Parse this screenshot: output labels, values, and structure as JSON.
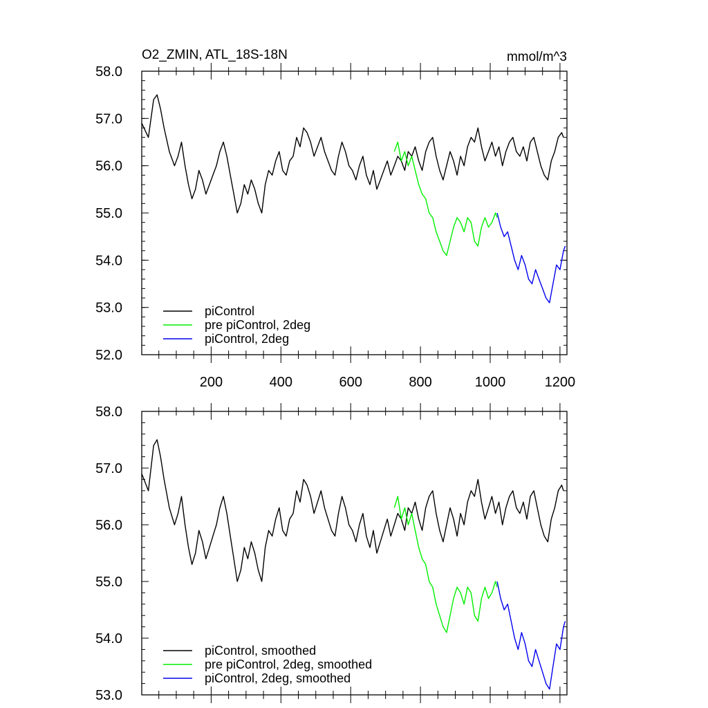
{
  "chart_data": [
    {
      "type": "line",
      "title_left": "O2_ZMIN, ATL_18S-18N",
      "title_right": "mmol/m^3",
      "xlim": [
        1,
        1220
      ],
      "ylim": [
        52.0,
        58.0
      ],
      "xticks": [
        200,
        400,
        600,
        800,
        1000,
        1200
      ],
      "xtick_labels": [
        "200",
        "400",
        "600",
        "800",
        "1000",
        "1200"
      ],
      "yticks": [
        52.0,
        53.0,
        54.0,
        55.0,
        56.0,
        57.0,
        58.0
      ],
      "ytick_labels": [
        "52.0",
        "53.0",
        "54.0",
        "55.0",
        "56.0",
        "57.0",
        "58.0"
      ],
      "legend_position": "bottom-left",
      "series": [
        {
          "name": "piControl",
          "color": "#000000",
          "x": [
            1,
            20,
            35,
            45,
            55,
            65,
            80,
            95,
            105,
            115,
            125,
            135,
            145,
            155,
            165,
            175,
            185,
            195,
            205,
            215,
            225,
            235,
            245,
            255,
            265,
            275,
            285,
            295,
            305,
            315,
            325,
            335,
            345,
            355,
            365,
            375,
            385,
            395,
            405,
            415,
            425,
            435,
            445,
            455,
            465,
            475,
            485,
            495,
            505,
            515,
            525,
            535,
            545,
            555,
            565,
            575,
            585,
            595,
            605,
            615,
            625,
            635,
            645,
            655,
            665,
            675,
            685,
            695,
            705,
            715,
            725,
            735,
            745,
            755,
            765,
            775,
            785,
            795,
            805,
            815,
            825,
            835,
            845,
            855,
            865,
            875,
            885,
            895,
            905,
            915,
            925,
            935,
            945,
            955,
            965,
            975,
            985,
            995,
            1005,
            1015,
            1025,
            1035,
            1045,
            1055,
            1065,
            1075,
            1085,
            1095,
            1105,
            1115,
            1125,
            1135,
            1145,
            1155,
            1165,
            1175,
            1185,
            1195,
            1205,
            1210
          ],
          "y": [
            56.9,
            56.6,
            57.4,
            57.5,
            57.2,
            56.8,
            56.3,
            56.0,
            56.2,
            56.5,
            56.0,
            55.6,
            55.3,
            55.5,
            55.9,
            55.7,
            55.4,
            55.6,
            55.8,
            56.0,
            56.3,
            56.5,
            56.2,
            55.8,
            55.4,
            55.0,
            55.2,
            55.6,
            55.4,
            55.7,
            55.5,
            55.2,
            55.0,
            55.6,
            55.9,
            55.8,
            56.1,
            56.3,
            55.9,
            55.8,
            56.1,
            56.2,
            56.6,
            56.4,
            56.8,
            56.7,
            56.5,
            56.2,
            56.4,
            56.6,
            56.3,
            56.1,
            55.9,
            55.8,
            56.2,
            56.5,
            56.3,
            56.0,
            55.9,
            55.7,
            56.0,
            56.2,
            55.8,
            55.6,
            55.9,
            55.5,
            55.7,
            55.9,
            56.1,
            55.8,
            56.0,
            56.2,
            56.1,
            55.9,
            56.3,
            56.2,
            56.4,
            56.1,
            55.9,
            56.3,
            56.5,
            56.6,
            56.2,
            55.9,
            55.7,
            56.0,
            56.3,
            56.1,
            55.8,
            56.2,
            56.0,
            56.4,
            56.6,
            56.5,
            56.8,
            56.4,
            56.1,
            56.3,
            56.5,
            56.2,
            56.4,
            56.0,
            56.3,
            56.5,
            56.6,
            56.3,
            56.2,
            56.4,
            56.1,
            56.5,
            56.6,
            56.3,
            56.0,
            55.8,
            55.7,
            56.1,
            56.3,
            56.6,
            56.7,
            56.6
          ]
        },
        {
          "name": "pre piControl, 2deg",
          "color": "#00ee00",
          "x": [
            725,
            735,
            745,
            755,
            765,
            775,
            785,
            795,
            805,
            815,
            825,
            835,
            845,
            855,
            865,
            875,
            885,
            895,
            905,
            915,
            925,
            935,
            945,
            955,
            965,
            975,
            985,
            995,
            1005,
            1015,
            1020
          ],
          "y": [
            56.3,
            56.5,
            56.1,
            56.3,
            56.0,
            56.2,
            55.9,
            55.6,
            55.4,
            55.3,
            55.0,
            54.9,
            54.6,
            54.4,
            54.2,
            54.1,
            54.4,
            54.7,
            54.9,
            54.8,
            54.6,
            54.9,
            54.8,
            54.4,
            54.3,
            54.7,
            54.9,
            54.7,
            54.8,
            55.0,
            54.9
          ]
        },
        {
          "name": "piControl, 2deg",
          "color": "#0000ee",
          "x": [
            1020,
            1030,
            1040,
            1050,
            1060,
            1070,
            1080,
            1090,
            1100,
            1110,
            1120,
            1130,
            1140,
            1150,
            1160,
            1170,
            1180,
            1190,
            1200,
            1210,
            1215
          ],
          "y": [
            55.0,
            54.7,
            54.5,
            54.6,
            54.3,
            54.0,
            53.8,
            54.1,
            53.9,
            53.6,
            53.5,
            53.8,
            53.6,
            53.4,
            53.2,
            53.1,
            53.5,
            53.9,
            53.8,
            54.2,
            54.3
          ]
        }
      ]
    },
    {
      "type": "line",
      "xlim": [
        1,
        1220
      ],
      "ylim": [
        53.0,
        58.0
      ],
      "xticks": [
        200,
        400,
        600,
        800,
        1000,
        1200
      ],
      "yticks": [
        53.0,
        54.0,
        55.0,
        56.0,
        57.0,
        58.0
      ],
      "ytick_labels": [
        "53.0",
        "54.0",
        "55.0",
        "56.0",
        "57.0",
        "58.0"
      ],
      "legend_position": "bottom-left",
      "series": [
        {
          "name": "piControl, smoothed",
          "color": "#000000",
          "x": [
            1,
            20,
            35,
            45,
            55,
            65,
            80,
            95,
            105,
            115,
            125,
            135,
            145,
            155,
            165,
            175,
            185,
            195,
            205,
            215,
            225,
            235,
            245,
            255,
            265,
            275,
            285,
            295,
            305,
            315,
            325,
            335,
            345,
            355,
            365,
            375,
            385,
            395,
            405,
            415,
            425,
            435,
            445,
            455,
            465,
            475,
            485,
            495,
            505,
            515,
            525,
            535,
            545,
            555,
            565,
            575,
            585,
            595,
            605,
            615,
            625,
            635,
            645,
            655,
            665,
            675,
            685,
            695,
            705,
            715,
            725,
            735,
            745,
            755,
            765,
            775,
            785,
            795,
            805,
            815,
            825,
            835,
            845,
            855,
            865,
            875,
            885,
            895,
            905,
            915,
            925,
            935,
            945,
            955,
            965,
            975,
            985,
            995,
            1005,
            1015,
            1025,
            1035,
            1045,
            1055,
            1065,
            1075,
            1085,
            1095,
            1105,
            1115,
            1125,
            1135,
            1145,
            1155,
            1165,
            1175,
            1185,
            1195,
            1205,
            1210
          ],
          "y": [
            56.9,
            56.6,
            57.4,
            57.5,
            57.2,
            56.8,
            56.3,
            56.0,
            56.2,
            56.5,
            56.0,
            55.6,
            55.3,
            55.5,
            55.9,
            55.7,
            55.4,
            55.6,
            55.8,
            56.0,
            56.3,
            56.5,
            56.2,
            55.8,
            55.4,
            55.0,
            55.2,
            55.6,
            55.4,
            55.7,
            55.5,
            55.2,
            55.0,
            55.6,
            55.9,
            55.8,
            56.1,
            56.3,
            55.9,
            55.8,
            56.1,
            56.2,
            56.6,
            56.4,
            56.8,
            56.7,
            56.5,
            56.2,
            56.4,
            56.6,
            56.3,
            56.1,
            55.9,
            55.8,
            56.2,
            56.5,
            56.3,
            56.0,
            55.9,
            55.7,
            56.0,
            56.2,
            55.8,
            55.6,
            55.9,
            55.5,
            55.7,
            55.9,
            56.1,
            55.8,
            56.0,
            56.2,
            56.1,
            55.9,
            56.3,
            56.2,
            56.4,
            56.1,
            55.9,
            56.3,
            56.5,
            56.6,
            56.2,
            55.9,
            55.7,
            56.0,
            56.3,
            56.1,
            55.8,
            56.2,
            56.0,
            56.4,
            56.6,
            56.5,
            56.8,
            56.4,
            56.1,
            56.3,
            56.5,
            56.2,
            56.4,
            56.0,
            56.3,
            56.5,
            56.6,
            56.3,
            56.2,
            56.4,
            56.1,
            56.5,
            56.6,
            56.3,
            56.0,
            55.8,
            55.7,
            56.1,
            56.3,
            56.6,
            56.7,
            56.6
          ]
        },
        {
          "name": "pre piControl, 2deg, smoothed",
          "color": "#00ee00",
          "x": [
            725,
            735,
            745,
            755,
            765,
            775,
            785,
            795,
            805,
            815,
            825,
            835,
            845,
            855,
            865,
            875,
            885,
            895,
            905,
            915,
            925,
            935,
            945,
            955,
            965,
            975,
            985,
            995,
            1005,
            1015,
            1020
          ],
          "y": [
            56.3,
            56.5,
            56.1,
            56.3,
            56.0,
            56.2,
            55.9,
            55.6,
            55.4,
            55.3,
            55.0,
            54.9,
            54.6,
            54.4,
            54.2,
            54.1,
            54.4,
            54.7,
            54.9,
            54.8,
            54.6,
            54.9,
            54.8,
            54.4,
            54.3,
            54.7,
            54.9,
            54.7,
            54.8,
            55.0,
            54.9
          ]
        },
        {
          "name": "piControl, 2deg, smoothed",
          "color": "#0000ee",
          "x": [
            1020,
            1030,
            1040,
            1050,
            1060,
            1070,
            1080,
            1090,
            1100,
            1110,
            1120,
            1130,
            1140,
            1150,
            1160,
            1170,
            1180,
            1190,
            1200,
            1210,
            1215
          ],
          "y": [
            55.0,
            54.7,
            54.5,
            54.6,
            54.3,
            54.0,
            53.8,
            54.1,
            53.9,
            53.6,
            53.5,
            53.8,
            53.6,
            53.4,
            53.2,
            53.1,
            53.5,
            53.9,
            53.8,
            54.2,
            54.3
          ]
        }
      ]
    }
  ]
}
